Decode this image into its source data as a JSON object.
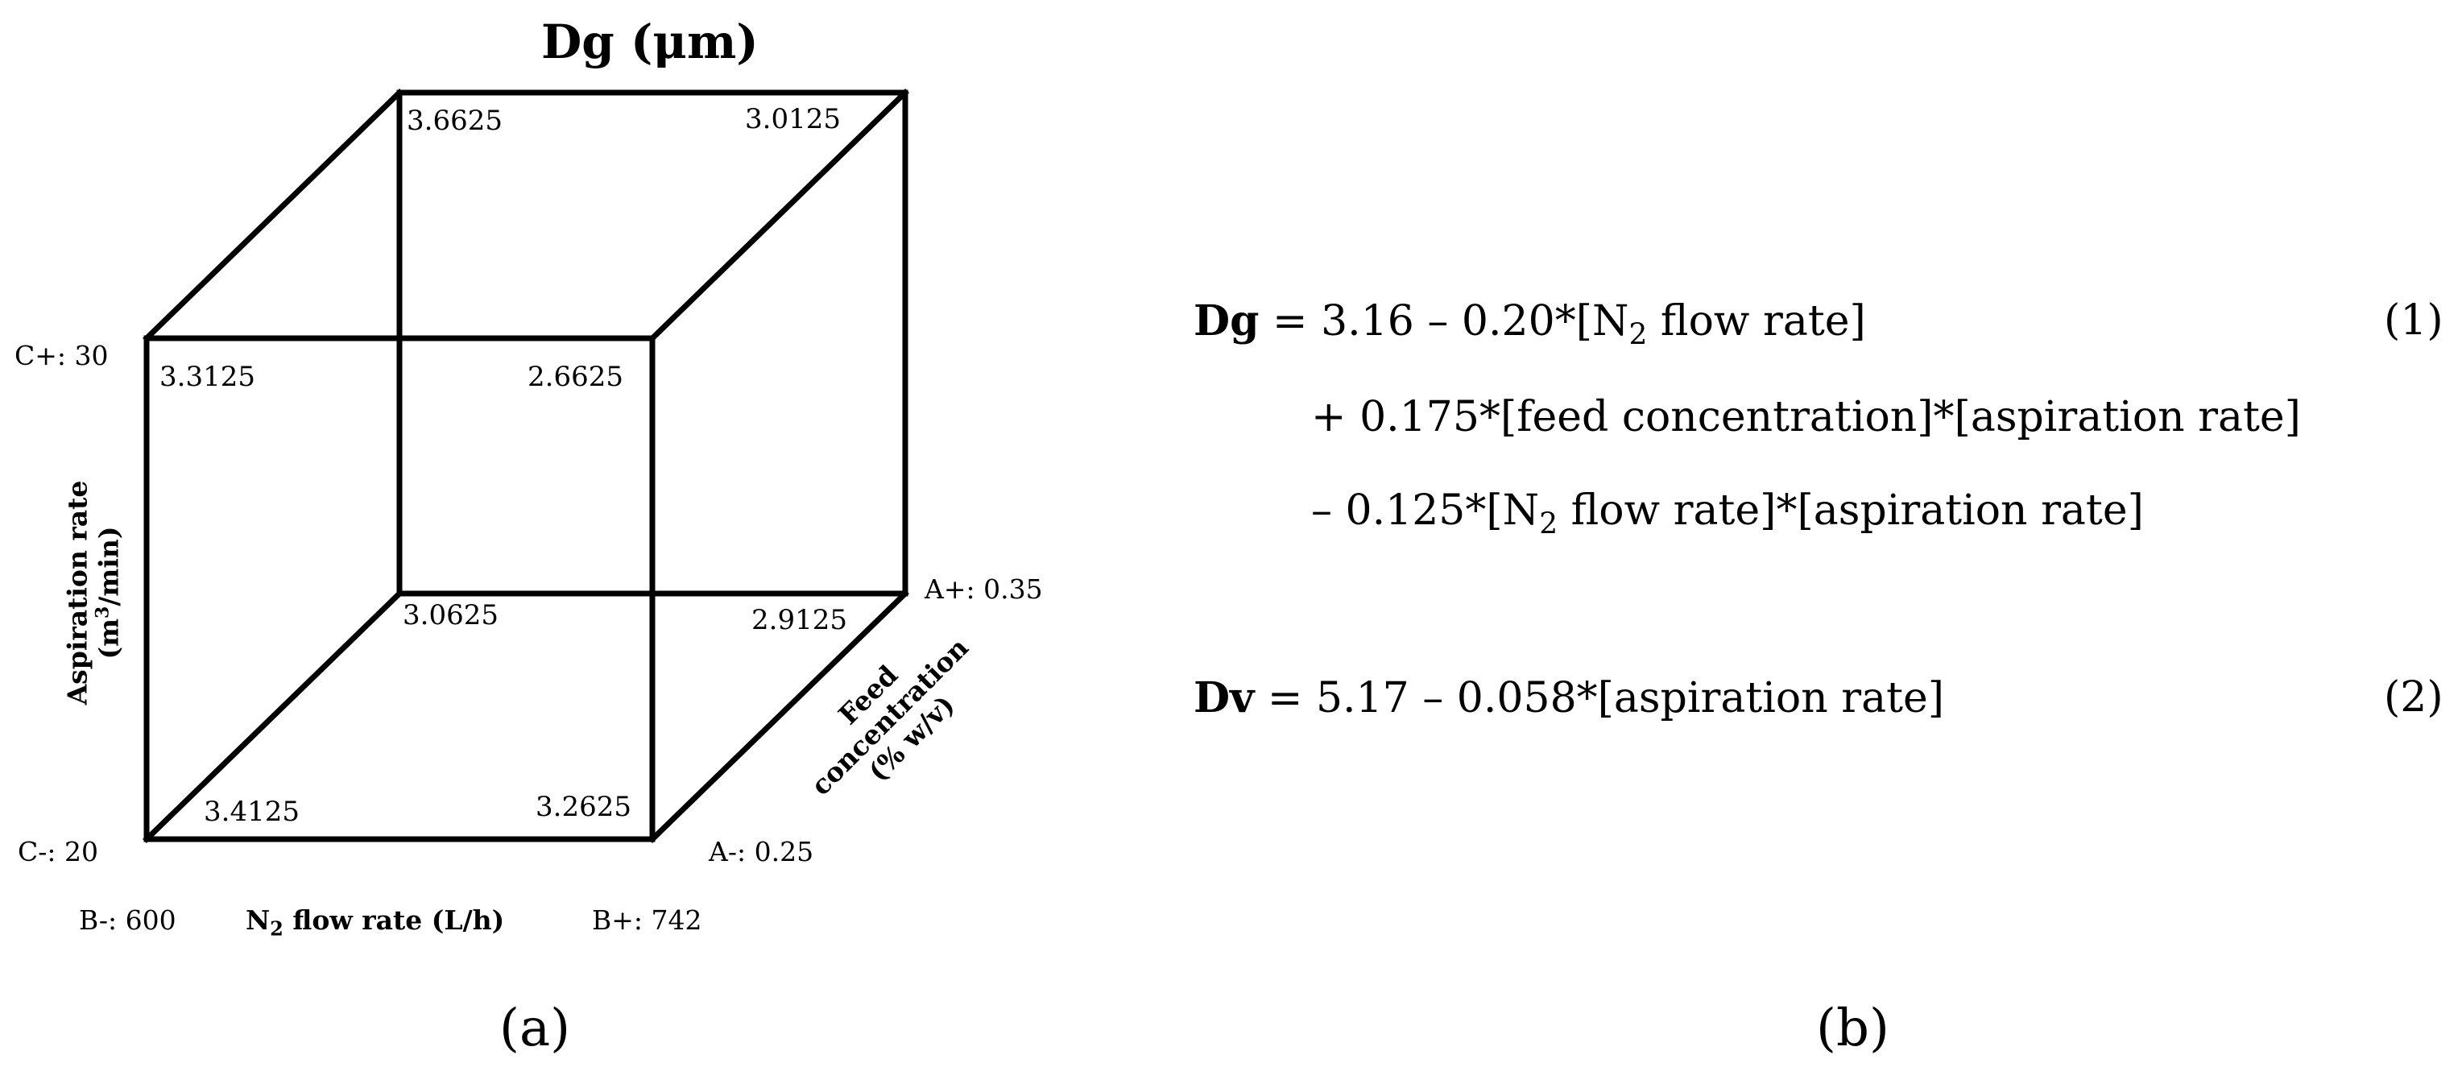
{
  "cube": {
    "title": "Dg (μm)",
    "corners": {
      "back_top_left": "3.6625",
      "back_top_right": "3.0125",
      "front_top_left": "3.3125",
      "front_top_right": "2.6625",
      "back_bottom_left": "3.0625",
      "back_bottom_right": "2.9125",
      "front_bottom_left": "3.4125",
      "front_bottom_right": "3.2625"
    },
    "levels": {
      "c_plus": "C+: 30",
      "c_minus": "C-: 20",
      "a_plus": "A+: 0.35",
      "a_minus": "A-: 0.25",
      "b_minus": "B-: 600",
      "b_plus": "B+: 742"
    },
    "axes": {
      "aspiration_line1": "Aspiration  rate",
      "aspiration_line2_pre": "(m",
      "aspiration_line2_sup": "3",
      "aspiration_line2_post": "/min)",
      "feed_line1": "Feed",
      "feed_line2": "concentration",
      "feed_line3": "(% w/v)",
      "n2_pre": "N",
      "n2_sub": "2",
      "n2_post": " flow rate (L/h)"
    },
    "panel_label": "(a)"
  },
  "equations": {
    "eq1_var": "Dg",
    "eq1_a": " = 3.16 – 0.20*[N",
    "eq1_sub": "2",
    "eq1_b": " flow rate]",
    "eq1_number": "(1)",
    "eq1_line2": "+ 0.175*[feed concentration]*[aspiration rate]",
    "eq1_line3_a": "– 0.125*[N",
    "eq1_line3_sub": "2",
    "eq1_line3_b": " flow rate]*[aspiration rate]",
    "eq2_var": "Dv",
    "eq2_rest": " = 5.17 – 0.058*[aspiration rate]",
    "eq2_number": "(2)",
    "panel_label": "(b)"
  }
}
